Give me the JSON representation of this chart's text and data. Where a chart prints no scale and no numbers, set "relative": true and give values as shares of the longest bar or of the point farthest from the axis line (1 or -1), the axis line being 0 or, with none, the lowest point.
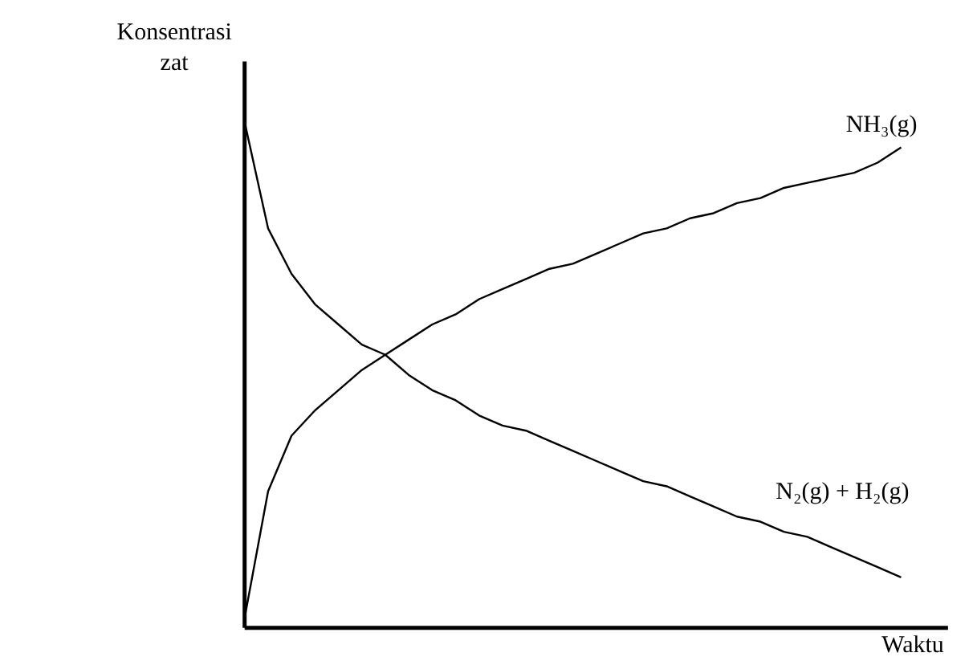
{
  "chart_data": {
    "type": "line",
    "relative": true,
    "xlabel": "Waktu",
    "ylabel": "Konsentrasi zat",
    "categories": [
      null,
      null,
      null,
      null,
      null,
      null,
      null,
      null,
      null,
      null,
      null,
      null,
      null,
      null,
      null,
      null,
      null,
      null,
      null,
      null,
      null,
      null,
      null,
      null,
      null,
      null,
      null,
      null,
      null
    ],
    "series": [
      {
        "name": "NH₃(g)",
        "color": "#000000",
        "values": [
          0.02,
          0.27,
          0.38,
          0.43,
          0.47,
          0.51,
          0.54,
          0.57,
          0.6,
          0.62,
          0.65,
          0.67,
          0.69,
          0.71,
          0.72,
          0.74,
          0.76,
          0.78,
          0.79,
          0.81,
          0.82,
          0.84,
          0.85,
          0.87,
          0.88,
          0.89,
          0.9,
          0.92,
          0.95
        ]
      },
      {
        "name": "N₂(g) + H₂(g)",
        "color": "#000000",
        "values": [
          1,
          0.79,
          0.7,
          0.64,
          0.6,
          0.56,
          0.54,
          0.5,
          0.47,
          0.45,
          0.42,
          0.4,
          0.39,
          0.37,
          0.35,
          0.33,
          0.31,
          0.29,
          0.28,
          0.26,
          0.24,
          0.22,
          0.21,
          0.19,
          0.18,
          0.16,
          0.14,
          0.12,
          0.1
        ]
      }
    ]
  }
}
